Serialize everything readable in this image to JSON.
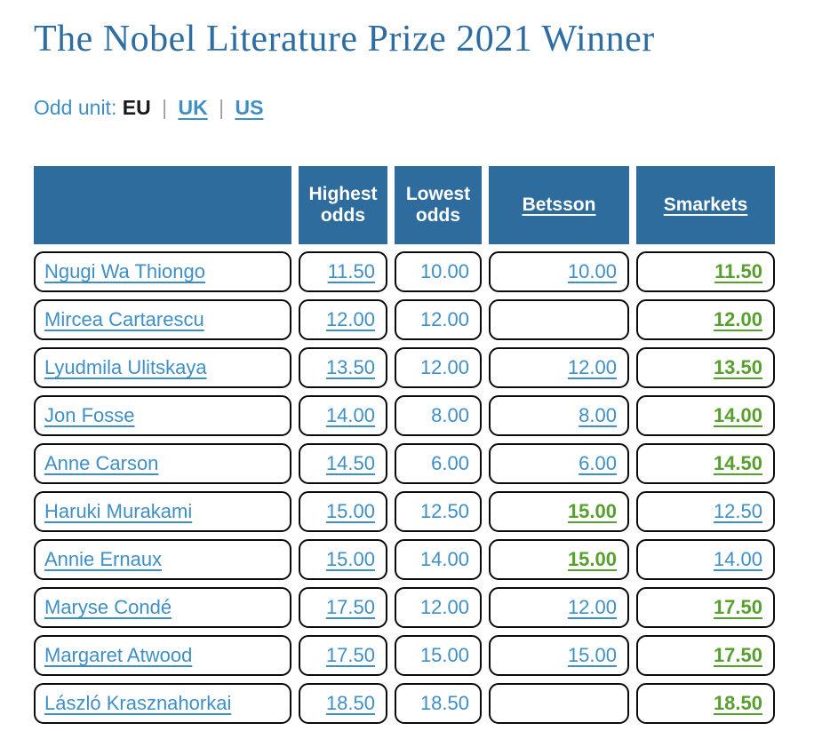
{
  "header": {
    "title": "The Nobel Literature Prize 2021 Winner"
  },
  "odd_unit": {
    "label": "Odd unit:",
    "separator": "|",
    "selected": "EU",
    "options": {
      "eu": "EU",
      "uk": "UK",
      "us": "US"
    }
  },
  "colors": {
    "title_blue": "#2d6da4",
    "link_blue": "#3f8fc7",
    "best_green": "#58a02e",
    "header_bg": "#2e6c9d",
    "cell_border": "#0a0a0a"
  },
  "table": {
    "columns": {
      "entrant": "",
      "highest": "Highest odds",
      "lowest": "Lowest odds",
      "betsson": "Betsson",
      "smarkets": "Smarkets"
    },
    "rows": [
      {
        "name": "Ngugi Wa Thiongo",
        "highest": "11.50",
        "lowest": "10.00",
        "betsson": {
          "v": "10.00",
          "c": "lnk"
        },
        "smarkets": {
          "v": "11.50",
          "c": "best"
        }
      },
      {
        "name": "Mircea Cartarescu",
        "highest": "12.00",
        "lowest": "12.00",
        "betsson": {
          "v": "",
          "c": ""
        },
        "smarkets": {
          "v": "12.00",
          "c": "best"
        }
      },
      {
        "name": "Lyudmila Ulitskaya",
        "highest": "13.50",
        "lowest": "12.00",
        "betsson": {
          "v": "12.00",
          "c": "lnk"
        },
        "smarkets": {
          "v": "13.50",
          "c": "best"
        }
      },
      {
        "name": "Jon Fosse",
        "highest": "14.00",
        "lowest": "8.00",
        "betsson": {
          "v": "8.00",
          "c": "lnk"
        },
        "smarkets": {
          "v": "14.00",
          "c": "best"
        }
      },
      {
        "name": "Anne Carson",
        "highest": "14.50",
        "lowest": "6.00",
        "betsson": {
          "v": "6.00",
          "c": "lnk"
        },
        "smarkets": {
          "v": "14.50",
          "c": "best"
        }
      },
      {
        "name": "Haruki Murakami",
        "highest": "15.00",
        "lowest": "12.50",
        "betsson": {
          "v": "15.00",
          "c": "best"
        },
        "smarkets": {
          "v": "12.50",
          "c": "lnk"
        }
      },
      {
        "name": "Annie Ernaux",
        "highest": "15.00",
        "lowest": "14.00",
        "betsson": {
          "v": "15.00",
          "c": "best"
        },
        "smarkets": {
          "v": "14.00",
          "c": "lnk"
        }
      },
      {
        "name": "Maryse Condé",
        "highest": "17.50",
        "lowest": "12.00",
        "betsson": {
          "v": "12.00",
          "c": "lnk"
        },
        "smarkets": {
          "v": "17.50",
          "c": "best"
        }
      },
      {
        "name": "Margaret Atwood",
        "highest": "17.50",
        "lowest": "15.00",
        "betsson": {
          "v": "15.00",
          "c": "lnk"
        },
        "smarkets": {
          "v": "17.50",
          "c": "best"
        }
      },
      {
        "name": "László Krasznahorkai",
        "highest": "18.50",
        "lowest": "18.50",
        "betsson": {
          "v": "",
          "c": ""
        },
        "smarkets": {
          "v": "18.50",
          "c": "best"
        }
      }
    ]
  }
}
